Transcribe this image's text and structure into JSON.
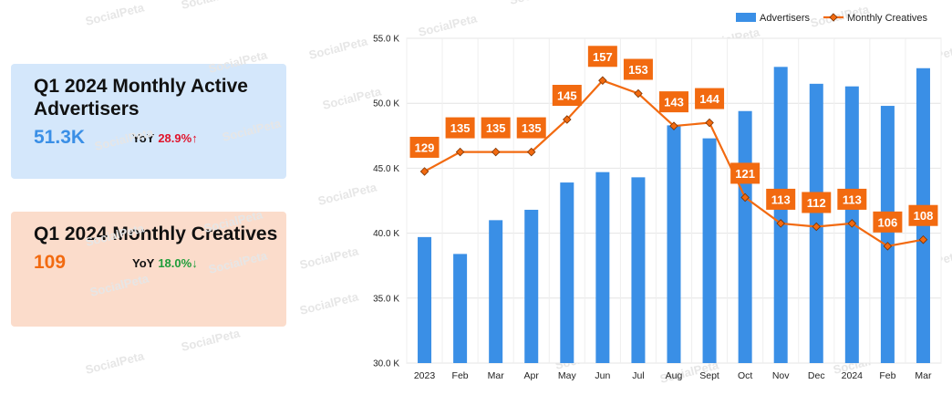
{
  "cards": [
    {
      "title": "Q1 2024 Monthly Active Advertisers",
      "value": "51.3K",
      "yoy_label": "YoY",
      "yoy_value": "28.9%↑",
      "yoy_direction": "up"
    },
    {
      "title": "Q1 2024 Monthly Creatives",
      "value": "109",
      "yoy_label": "YoY",
      "yoy_value": "18.0%↓",
      "yoy_direction": "down"
    }
  ],
  "watermark": "SocialPeta",
  "colors": {
    "bar": "#3a8fe6",
    "line": "#f26a10",
    "card_blue_bg": "#d4e7fb",
    "card_orange_bg": "#fbdccb",
    "up": "#e0142c",
    "down": "#1f9d3a"
  },
  "chart_data": {
    "type": "bar",
    "categories": [
      "2023",
      "Feb",
      "Mar",
      "Apr",
      "May",
      "Jun",
      "Jul",
      "Aug",
      "Sept",
      "Oct",
      "Nov",
      "Dec",
      "2024",
      "Feb",
      "Mar"
    ],
    "series": [
      {
        "name": "Advertisers",
        "type": "bar",
        "axis": "left",
        "values": [
          39700,
          38400,
          41000,
          41800,
          43900,
          44700,
          44300,
          48300,
          47300,
          49400,
          52800,
          51500,
          51300,
          49800,
          52700
        ]
      },
      {
        "name": "Monthly Creatives",
        "type": "line",
        "axis": "right",
        "marker": "diamond",
        "values": [
          129,
          135,
          135,
          135,
          145,
          157,
          153,
          143,
          144,
          121,
          113,
          112,
          113,
          106,
          108
        ]
      }
    ],
    "yticks": [
      "30.0 K",
      "35.0 K",
      "40.0 K",
      "45.0 K",
      "50.0 K",
      "55.0 K"
    ],
    "ylim": [
      30000,
      55000
    ],
    "right_ylim": [
      70,
      170
    ],
    "legend_position": "top-right",
    "grid": true
  }
}
